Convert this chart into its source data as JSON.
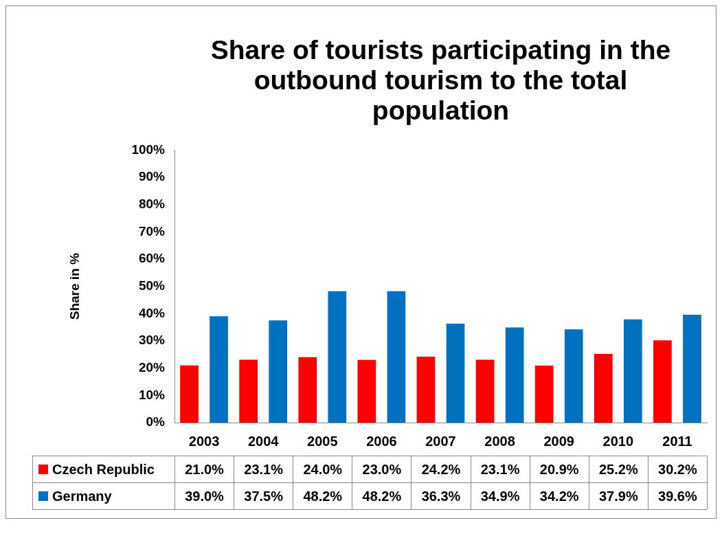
{
  "chart_data": {
    "type": "bar",
    "title": "Share of tourists participating in the outbound tourism to the total population",
    "ylabel": "Share in %",
    "categories": [
      "2003",
      "2004",
      "2005",
      "2006",
      "2007",
      "2008",
      "2009",
      "2010",
      "2011"
    ],
    "series": [
      {
        "name": "Czech Republic",
        "color": "#ff0000",
        "values": [
          21.0,
          23.1,
          24.0,
          23.0,
          24.2,
          23.1,
          20.9,
          25.2,
          30.2
        ],
        "value_labels": [
          "21.0%",
          "23.1%",
          "24.0%",
          "23.0%",
          "24.2%",
          "23.1%",
          "20.9%",
          "25.2%",
          "30.2%"
        ]
      },
      {
        "name": "Germany",
        "color": "#0070c0",
        "values": [
          39.0,
          37.5,
          48.2,
          48.2,
          36.3,
          34.9,
          34.2,
          37.9,
          39.6
        ],
        "value_labels": [
          "39.0%",
          "37.5%",
          "48.2%",
          "48.2%",
          "36.3%",
          "34.9%",
          "34.2%",
          "37.9%",
          "39.6%"
        ]
      }
    ],
    "ylim": [
      0,
      100
    ],
    "yticks": [
      {
        "value": 0,
        "label": "0%"
      },
      {
        "value": 10,
        "label": "10%"
      },
      {
        "value": 20,
        "label": "20%"
      },
      {
        "value": 30,
        "label": "30%"
      },
      {
        "value": 40,
        "label": "40%"
      },
      {
        "value": 50,
        "label": "50%"
      },
      {
        "value": 60,
        "label": "60%"
      },
      {
        "value": 70,
        "label": "70%"
      },
      {
        "value": 80,
        "label": "80%"
      },
      {
        "value": 90,
        "label": "90%"
      },
      {
        "value": 100,
        "label": "100%"
      }
    ],
    "grid": false,
    "legend": "bottom"
  }
}
